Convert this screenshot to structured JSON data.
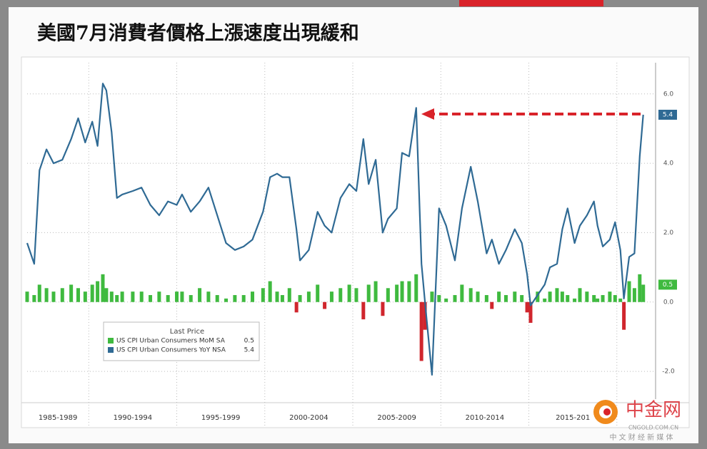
{
  "chart_data": {
    "type": "combo",
    "title": "美國7月消費者價格上漲速度出現緩和",
    "x": [
      1986.5,
      1986.9,
      1987.2,
      1987.6,
      1988.0,
      1988.5,
      1989.0,
      1989.4,
      1989.8,
      1990.2,
      1990.5,
      1990.8,
      1991.0,
      1991.3,
      1991.6,
      1991.9,
      1992.5,
      1993.0,
      1993.5,
      1994.0,
      1994.5,
      1995.0,
      1995.3,
      1995.8,
      1996.3,
      1996.8,
      1997.3,
      1997.8,
      1998.3,
      1998.8,
      1999.3,
      1999.9,
      2000.3,
      2000.7,
      2001.0,
      2001.4,
      2001.8,
      2002.0,
      2002.5,
      2003.0,
      2003.4,
      2003.8,
      2004.3,
      2004.8,
      2005.2,
      2005.6,
      2005.9,
      2006.3,
      2006.7,
      2007.0,
      2007.5,
      2007.8,
      2008.2,
      2008.6,
      2008.9,
      2009.1,
      2009.5,
      2009.9,
      2010.3,
      2010.8,
      2011.2,
      2011.7,
      2012.1,
      2012.6,
      2012.9,
      2013.3,
      2013.7,
      2014.2,
      2014.6,
      2014.9,
      2015.1,
      2015.5,
      2015.9,
      2016.2,
      2016.6,
      2016.9,
      2017.2,
      2017.6,
      2017.9,
      2018.3,
      2018.7,
      2018.9,
      2019.2,
      2019.6,
      2019.9,
      2020.2,
      2020.4,
      2020.7,
      2021.0,
      2021.3,
      2021.5
    ],
    "series": [
      {
        "name": "US CPI Urban Consumers MoM SA",
        "type": "bar",
        "color": "#3fba3f",
        "negative_color": "#d0262d",
        "values": [
          0.3,
          0.2,
          0.5,
          0.4,
          0.3,
          0.4,
          0.5,
          0.4,
          0.3,
          0.5,
          0.6,
          0.8,
          0.4,
          0.3,
          0.2,
          0.3,
          0.3,
          0.3,
          0.2,
          0.3,
          0.2,
          0.3,
          0.3,
          0.2,
          0.4,
          0.3,
          0.2,
          0.1,
          0.2,
          0.2,
          0.3,
          0.4,
          0.6,
          0.3,
          0.2,
          0.4,
          -0.3,
          0.2,
          0.3,
          0.5,
          -0.2,
          0.3,
          0.4,
          0.5,
          0.4,
          -0.5,
          0.5,
          0.6,
          -0.4,
          0.4,
          0.5,
          0.6,
          0.6,
          0.8,
          -1.7,
          -0.8,
          0.3,
          0.2,
          0.1,
          0.2,
          0.5,
          0.4,
          0.3,
          0.2,
          -0.2,
          0.3,
          0.2,
          0.3,
          0.2,
          -0.3,
          -0.6,
          0.3,
          0.1,
          0.3,
          0.4,
          0.3,
          0.2,
          0.1,
          0.4,
          0.3,
          0.2,
          0.1,
          0.2,
          0.3,
          0.2,
          0.1,
          -0.8,
          0.6,
          0.4,
          0.8,
          0.5
        ]
      },
      {
        "name": "US CPI Urban Consumers YoY NSA",
        "type": "line",
        "color": "#2f6a94",
        "values": [
          1.7,
          1.1,
          3.8,
          4.4,
          4.0,
          4.1,
          4.7,
          5.3,
          4.6,
          5.2,
          4.5,
          6.3,
          6.1,
          4.9,
          3.0,
          3.1,
          3.2,
          3.3,
          2.8,
          2.5,
          2.9,
          2.8,
          3.1,
          2.6,
          2.9,
          3.3,
          2.5,
          1.7,
          1.5,
          1.6,
          1.8,
          2.6,
          3.6,
          3.7,
          3.6,
          3.6,
          2.1,
          1.2,
          1.5,
          2.6,
          2.2,
          2.0,
          3.0,
          3.4,
          3.2,
          4.7,
          3.4,
          4.1,
          2.0,
          2.4,
          2.7,
          4.3,
          4.2,
          5.6,
          1.1,
          0.0,
          -2.1,
          2.7,
          2.2,
          1.2,
          2.7,
          3.9,
          2.9,
          1.4,
          1.8,
          1.1,
          1.5,
          2.1,
          1.7,
          0.8,
          -0.1,
          0.2,
          0.5,
          1.0,
          1.1,
          2.1,
          2.7,
          1.7,
          2.2,
          2.5,
          2.9,
          2.2,
          1.6,
          1.8,
          2.3,
          1.5,
          0.1,
          1.3,
          1.4,
          4.2,
          5.4
        ]
      }
    ],
    "legend_title": "Last Price",
    "period_labels": [
      "1985-1989",
      "1990-1994",
      "1995-1999",
      "2000-2004",
      "2005-2009",
      "2010-2014",
      "2015-201"
    ],
    "xlim": [
      1986.5,
      2022.2
    ],
    "xticks": [
      1990,
      1995,
      2000,
      2005,
      2010,
      2015,
      2020
    ],
    "ylim": [
      -2.8,
      6.9
    ],
    "yticks": [
      {
        "value": 6,
        "label": "6.0"
      },
      {
        "value": 4,
        "label": "4.0"
      },
      {
        "value": 2,
        "label": "2.0"
      },
      {
        "value": 0,
        "label": "0.0"
      },
      {
        "value": -2,
        "label": "-2.0"
      }
    ],
    "grid": true
  },
  "watermark": {
    "name": "中金网",
    "site": "CNGOLD.COM.CN",
    "slogan": "中 文 财 经 新 媒 体"
  }
}
